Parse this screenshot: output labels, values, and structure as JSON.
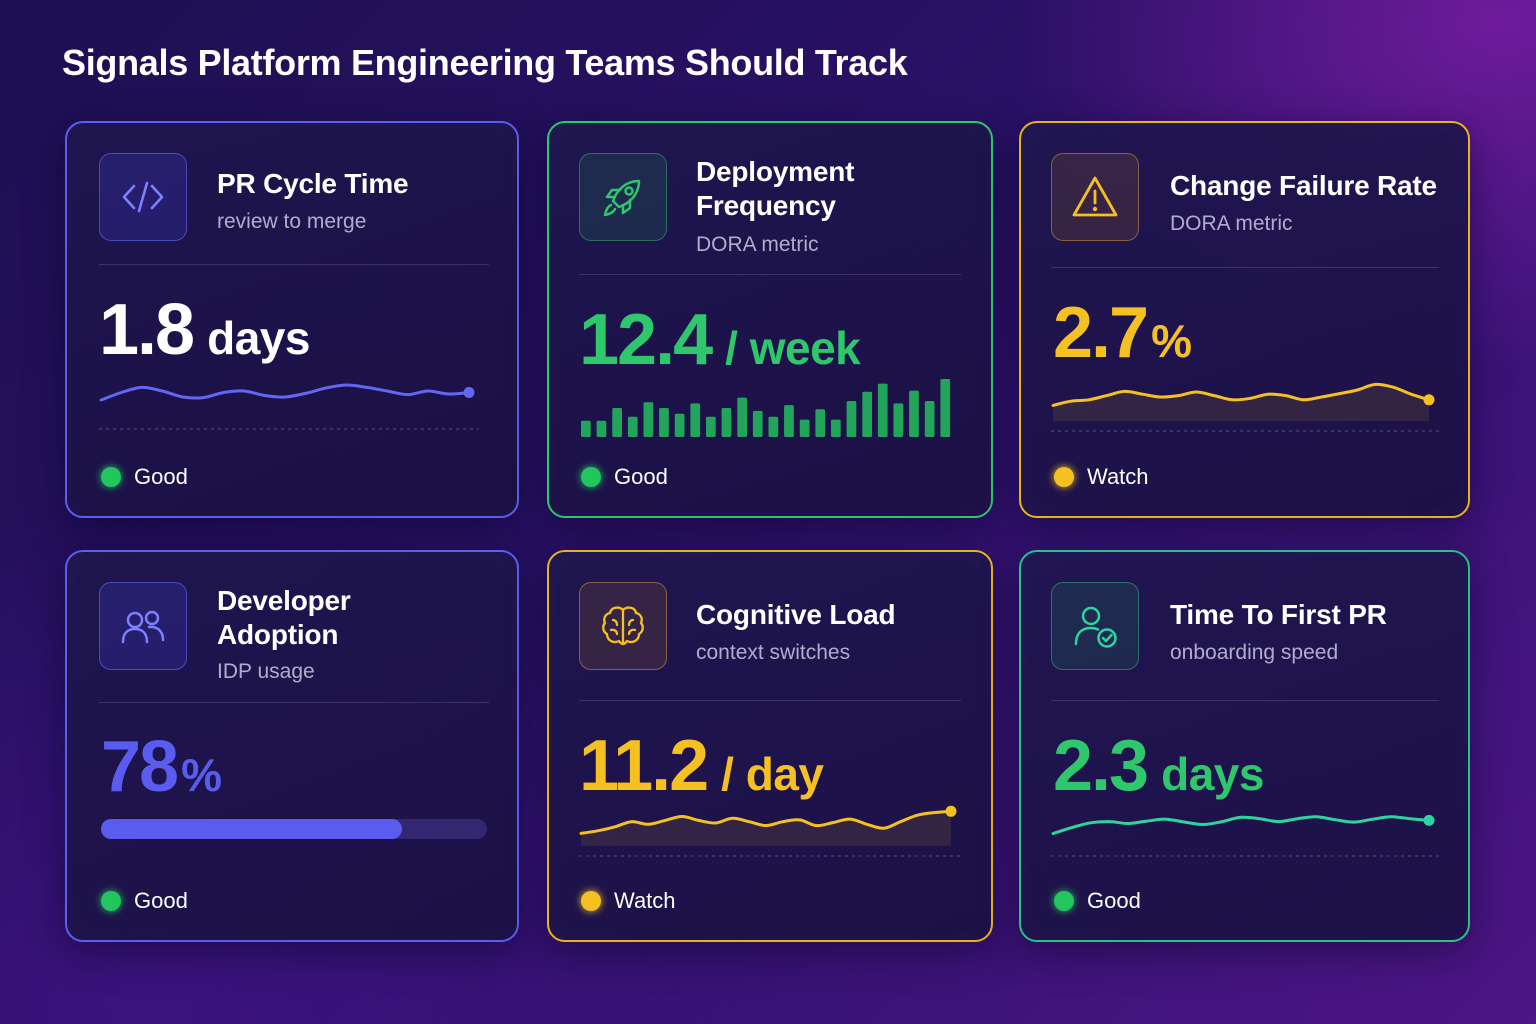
{
  "page": {
    "title": "Signals Platform Engineering Teams Should Track"
  },
  "colors": {
    "purple": "#6366f1",
    "green": "#22c55e",
    "yellow": "#f5c022",
    "teal": "#2dd4a0"
  },
  "cards": [
    {
      "id": "pr-cycle-time",
      "icon": "code-icon",
      "title": "PR Cycle Time",
      "subtitle": "review to merge",
      "value": "1.8",
      "unit": "days",
      "status": "Good",
      "trend": [
        0.3,
        0.55,
        0.72,
        0.6,
        0.4,
        0.38,
        0.55,
        0.6,
        0.45,
        0.4,
        0.52,
        0.7,
        0.8,
        0.72,
        0.6,
        0.48,
        0.6,
        0.5,
        0.55
      ]
    },
    {
      "id": "deployment-frequency",
      "icon": "rocket-icon",
      "title": "Deployment Frequency",
      "subtitle": "DORA metric",
      "value": "12.4",
      "unit": "/ week",
      "status": "Good",
      "bars": [
        0.28,
        0.28,
        0.5,
        0.35,
        0.6,
        0.5,
        0.4,
        0.58,
        0.35,
        0.5,
        0.68,
        0.45,
        0.35,
        0.55,
        0.3,
        0.48,
        0.3,
        0.62,
        0.78,
        0.92,
        0.58,
        0.8,
        0.62,
        1.0
      ]
    },
    {
      "id": "change-failure-rate",
      "icon": "warning-icon",
      "title": "Change Failure Rate",
      "subtitle": "DORA metric",
      "value": "2.7",
      "unit": "%",
      "status": "Watch",
      "trend": [
        0.2,
        0.35,
        0.4,
        0.55,
        0.7,
        0.6,
        0.5,
        0.55,
        0.68,
        0.55,
        0.4,
        0.45,
        0.6,
        0.55,
        0.4,
        0.5,
        0.62,
        0.75,
        0.95,
        0.85,
        0.6,
        0.4
      ]
    },
    {
      "id": "developer-adoption",
      "icon": "users-icon",
      "title": "Developer Adoption",
      "subtitle": "IDP usage",
      "value": "78",
      "unit": "%",
      "status": "Good",
      "progress": 0.78
    },
    {
      "id": "cognitive-load",
      "icon": "brain-icon",
      "title": "Cognitive Load",
      "subtitle": "context switches",
      "value": "11.2",
      "unit": "/ day",
      "status": "Watch",
      "trend": [
        0.1,
        0.2,
        0.35,
        0.55,
        0.45,
        0.6,
        0.75,
        0.6,
        0.5,
        0.68,
        0.55,
        0.4,
        0.55,
        0.62,
        0.4,
        0.52,
        0.65,
        0.45,
        0.3,
        0.55,
        0.8,
        0.9,
        0.95
      ]
    },
    {
      "id": "time-to-first-pr",
      "icon": "user-check-icon",
      "title": "Time To First PR",
      "subtitle": "onboarding speed",
      "value": "2.3",
      "unit": "days",
      "status": "Good",
      "trend": [
        0.1,
        0.35,
        0.55,
        0.6,
        0.52,
        0.62,
        0.7,
        0.58,
        0.48,
        0.6,
        0.78,
        0.72,
        0.6,
        0.72,
        0.8,
        0.68,
        0.58,
        0.7,
        0.8,
        0.72,
        0.65
      ]
    }
  ]
}
